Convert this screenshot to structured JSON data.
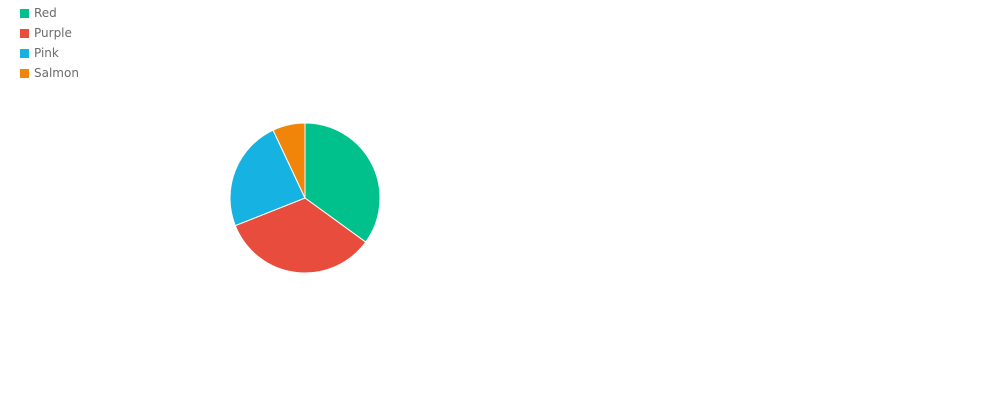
{
  "chart_data": {
    "type": "pie",
    "categories": [
      "Red",
      "Purple",
      "Pink",
      "Salmon"
    ],
    "values": [
      35,
      34,
      24,
      7
    ],
    "colors": [
      "#00c08b",
      "#e74c3c",
      "#15b2e2",
      "#f0850a"
    ],
    "legend_position": "top-left",
    "title": ""
  }
}
